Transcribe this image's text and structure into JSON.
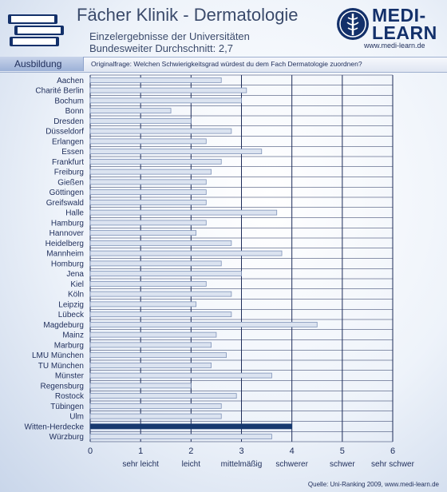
{
  "header": {
    "title": "Fächer Klinik - Dermatologie",
    "subtitle1": "Einzelergebnisse der Universitäten",
    "subtitle2": "Bundesweiter Durchschnitt: 2,7",
    "brand_line1": "MEDI-",
    "brand_line2": "LEARN",
    "brand_url": "www.medi-learn.de",
    "tab_label": "Ausbildung",
    "question": "Originalfrage: Welchen Schwierigkeitsgrad würdest du dem Fach Dermatologie zuordnen?",
    "source": "Quelle: Uni-Ranking 2009, www.medi-learn.de"
  },
  "colors": {
    "bar": "#dbe3f0",
    "bar_edge": "#7f93b8",
    "highlight_bar": "#17396f",
    "grid": "#1e2d5a"
  },
  "chart_data": {
    "type": "bar",
    "orientation": "horizontal",
    "categories": [
      "Aachen",
      "Charité Berlin",
      "Bochum",
      "Bonn",
      "Dresden",
      "Düsseldorf",
      "Erlangen",
      "Essen",
      "Frankfurt",
      "Freiburg",
      "Gießen",
      "Göttingen",
      "Greifswald",
      "Halle",
      "Hamburg",
      "Hannover",
      "Heidelberg",
      "Mannheim",
      "Homburg",
      "Jena",
      "Kiel",
      "Köln",
      "Leipzig",
      "Lübeck",
      "Magdeburg",
      "Mainz",
      "Marburg",
      "LMU München",
      "TU München",
      "Münster",
      "Regensburg",
      "Rostock",
      "Tübingen",
      "Ulm",
      "Witten-Herdecke",
      "Würzburg"
    ],
    "values": [
      2.6,
      3.1,
      3.0,
      1.6,
      2.0,
      2.8,
      2.3,
      3.4,
      2.6,
      2.4,
      2.3,
      2.3,
      2.3,
      3.7,
      2.3,
      2.1,
      2.8,
      3.8,
      2.6,
      3.0,
      2.3,
      2.8,
      2.1,
      2.8,
      4.5,
      2.5,
      2.4,
      2.7,
      2.4,
      3.6,
      2.0,
      2.9,
      2.6,
      2.6,
      4.0,
      3.6
    ],
    "highlight": "Witten-Herdecke",
    "xlim": [
      0,
      6
    ],
    "xticks": [
      "0",
      "1",
      "2",
      "3",
      "4",
      "5",
      "6"
    ],
    "scale_labels": [
      "sehr leicht",
      "leicht",
      "mittelmäßig",
      "schwerer",
      "schwer",
      "sehr schwer"
    ],
    "grid": true
  }
}
